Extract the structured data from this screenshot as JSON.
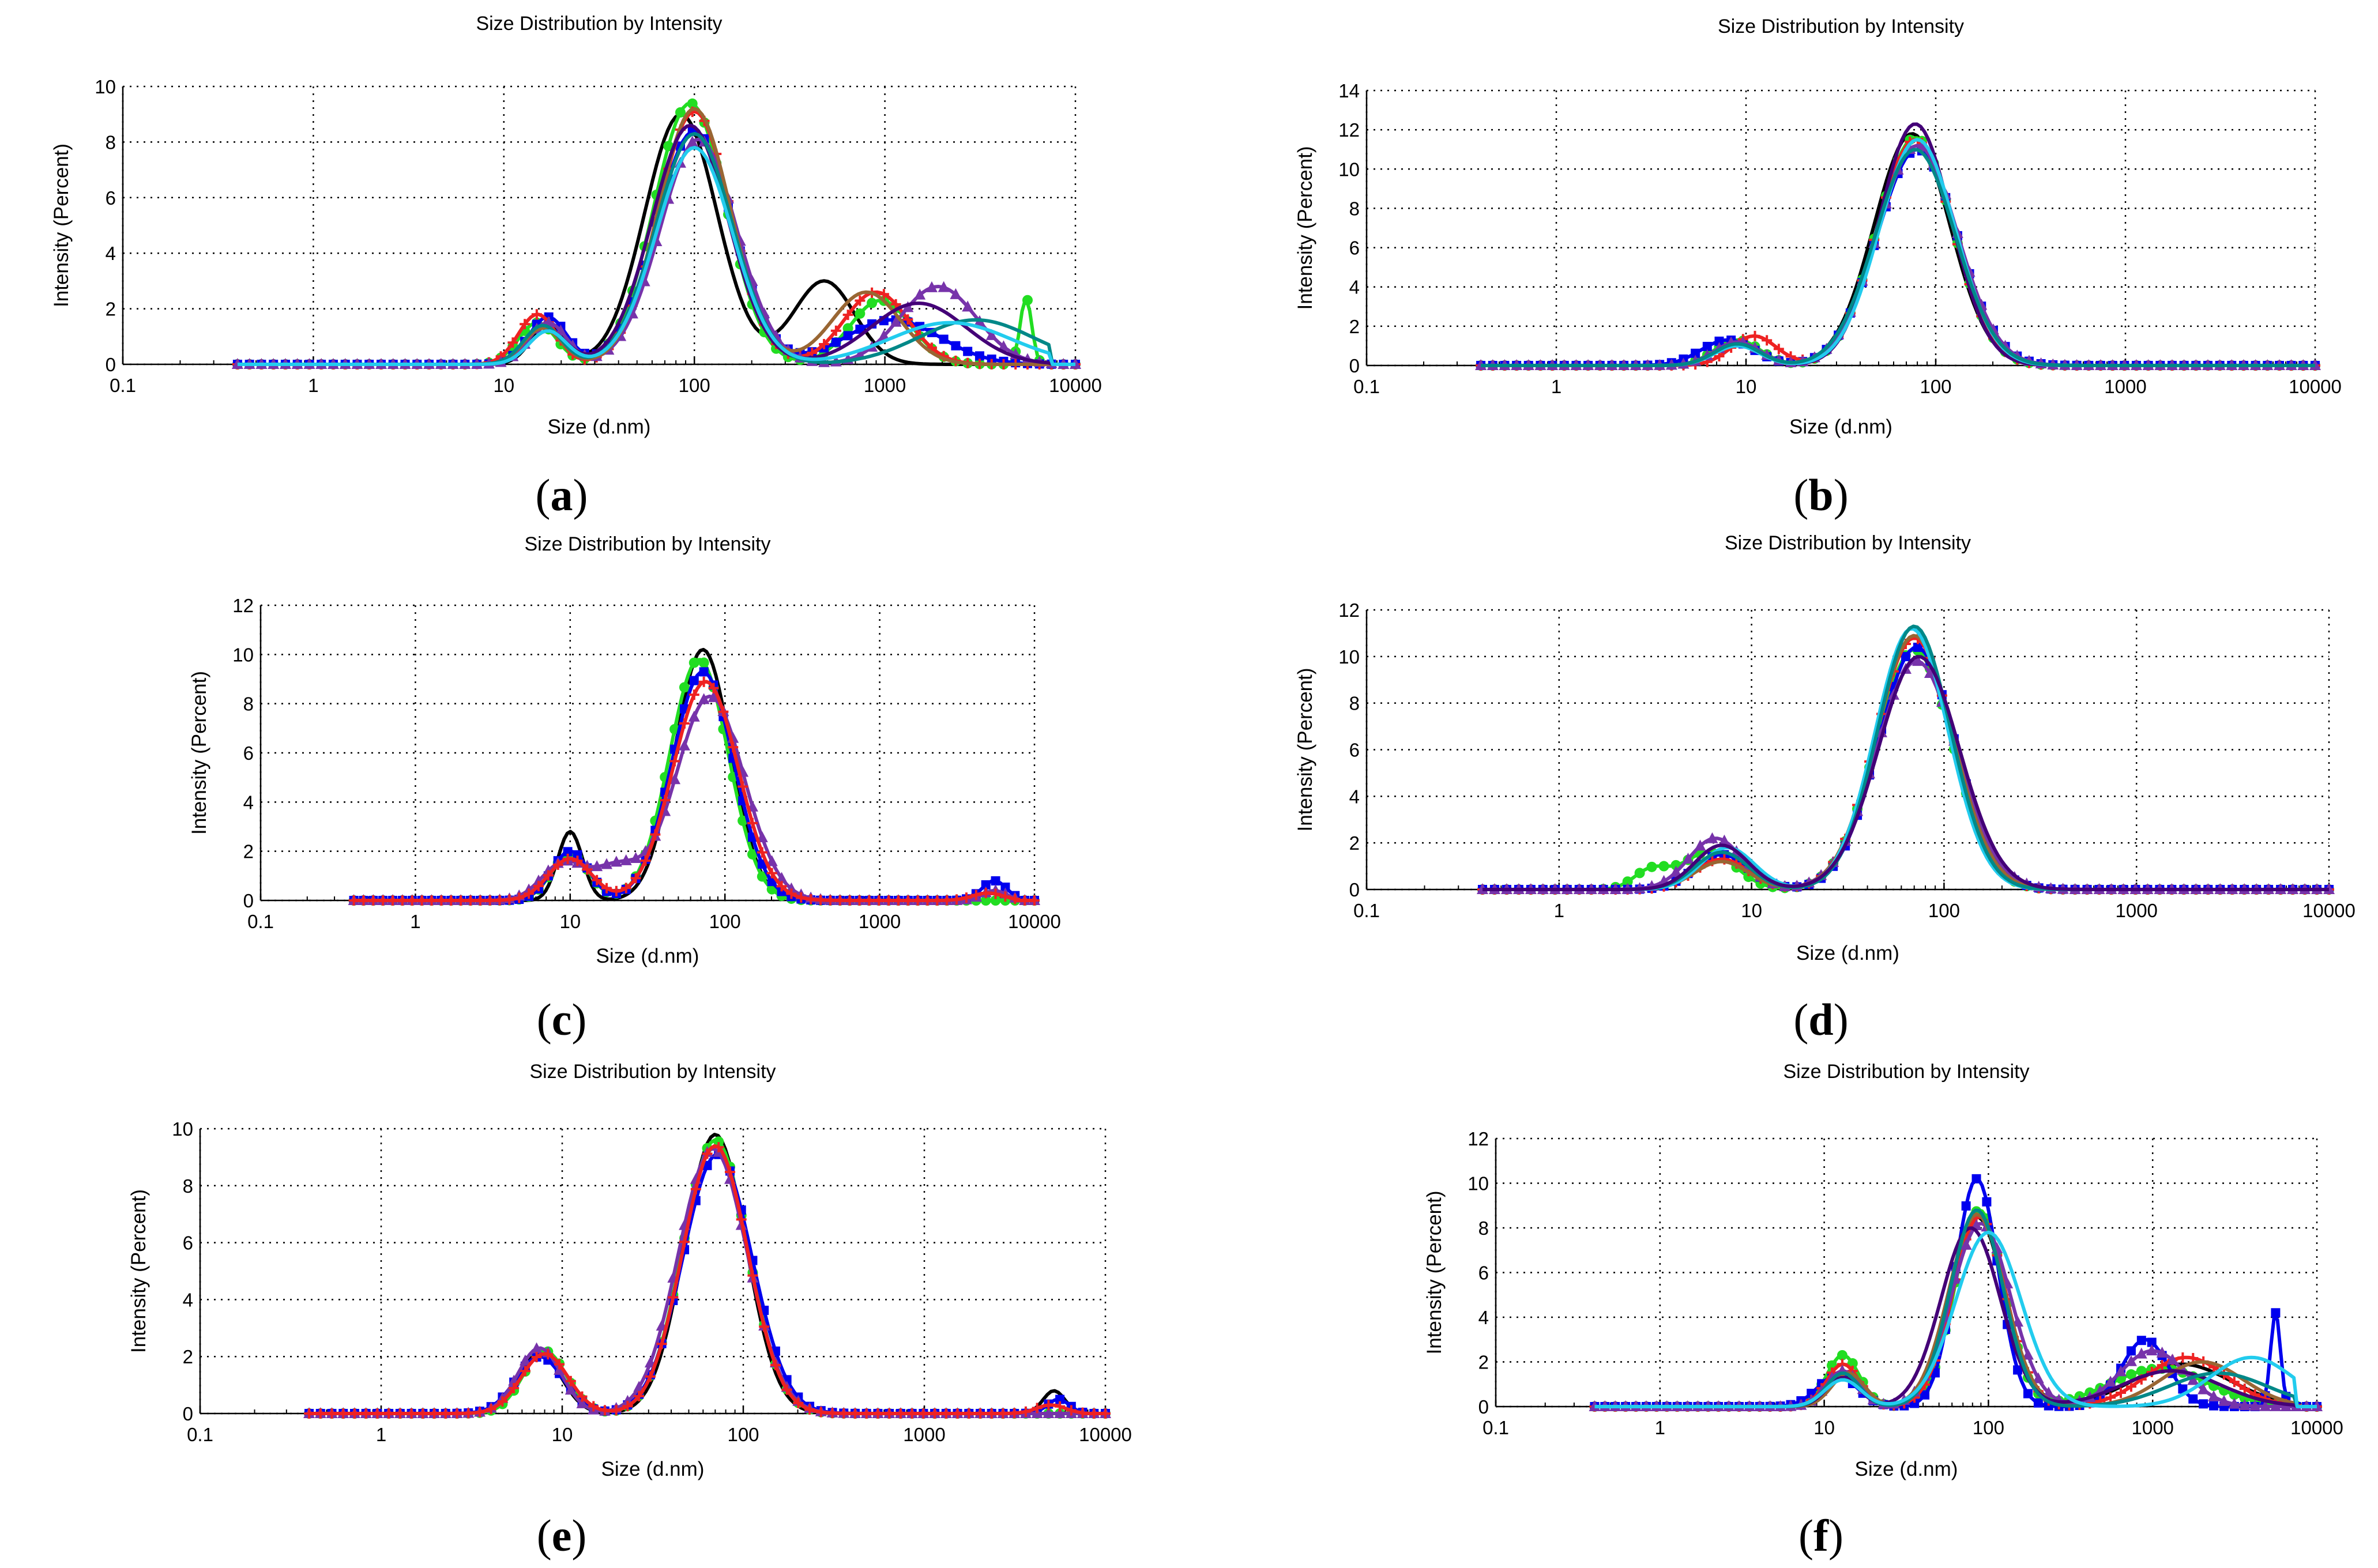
{
  "chart_data": [
    {
      "id": "a",
      "type": "line",
      "title": "Size Distribution by Intensity",
      "xlabel": "Size (d.nm)",
      "ylabel": "Intensity (Percent)",
      "xscale": "log",
      "xlim": [
        0.1,
        10000
      ],
      "ylim": [
        0,
        10
      ],
      "xticks": [
        "0.1",
        "1",
        "10",
        "100",
        "1000",
        "10000"
      ],
      "yticks": [
        "0",
        "2",
        "4",
        "6",
        "8",
        "10"
      ],
      "caption_letter": "a",
      "series": [
        {
          "name": "black",
          "color": "#000000",
          "marker": "none",
          "peaks": [
            [
              17,
              1.4,
              0.09
            ],
            [
              85,
              9.0,
              0.19
            ],
            [
              480,
              3.0,
              0.16
            ]
          ]
        },
        {
          "name": "green",
          "color": "#22dd22",
          "marker": "circle",
          "peaks": [
            [
              15,
              1.5,
              0.1
            ],
            [
              95,
              9.4,
              0.19
            ],
            [
              950,
              2.3,
              0.16
            ],
            [
              5500,
              2.4,
              0.03
            ]
          ]
        },
        {
          "name": "blue",
          "color": "#0000ee",
          "marker": "square",
          "peaks": [
            [
              17,
              1.7,
              0.1
            ],
            [
              100,
              8.4,
              0.2
            ],
            [
              1100,
              1.6,
              0.25
            ]
          ]
        },
        {
          "name": "red",
          "color": "#ee2222",
          "marker": "plus",
          "peaks": [
            [
              15,
              1.8,
              0.1
            ],
            [
              100,
              9.1,
              0.19
            ],
            [
              900,
              2.6,
              0.17
            ]
          ]
        },
        {
          "name": "purple",
          "color": "#7733aa",
          "marker": "triangle",
          "peaks": [
            [
              17,
              1.5,
              0.1
            ],
            [
              105,
              8.1,
              0.2
            ],
            [
              1900,
              2.8,
              0.2
            ]
          ]
        },
        {
          "name": "brown",
          "color": "#996633",
          "marker": "none",
          "peaks": [
            [
              16,
              1.3,
              0.1
            ],
            [
              100,
              9.2,
              0.19
            ],
            [
              800,
              2.6,
              0.18
            ]
          ]
        },
        {
          "name": "dark purple",
          "color": "#440077",
          "marker": "none",
          "peaks": [
            [
              17,
              1.2,
              0.1
            ],
            [
              95,
              8.6,
              0.2
            ],
            [
              1500,
              2.2,
              0.25
            ]
          ]
        },
        {
          "name": "dark cyan",
          "color": "#008888",
          "marker": "none",
          "peaks": [
            [
              16,
              1.4,
              0.1
            ],
            [
              100,
              8.3,
              0.2
            ],
            [
              3000,
              1.6,
              0.3
            ]
          ]
        },
        {
          "name": "cyan",
          "color": "#22ccee",
          "marker": "none",
          "peaks": [
            [
              17,
              1.2,
              0.1
            ],
            [
              100,
              7.8,
              0.2
            ],
            [
              2200,
              1.5,
              0.32
            ]
          ]
        }
      ]
    },
    {
      "id": "b",
      "type": "line",
      "title": "Size Distribution by Intensity",
      "xlabel": "Size (d.nm)",
      "ylabel": "Intensity (Percent)",
      "xscale": "log",
      "xlim": [
        0.1,
        10000
      ],
      "ylim": [
        0,
        14
      ],
      "xticks": [
        "0.1",
        "1",
        "10",
        "100",
        "1000",
        "10000"
      ],
      "yticks": [
        "0",
        "2",
        "4",
        "6",
        "8",
        "10",
        "12",
        "14"
      ],
      "caption_letter": "b",
      "series": [
        {
          "name": "black",
          "color": "#000000",
          "marker": "none",
          "peaks": [
            [
              9,
              1.2,
              0.12
            ],
            [
              75,
              11.8,
              0.2
            ]
          ]
        },
        {
          "name": "green",
          "color": "#22dd22",
          "marker": "circle",
          "peaks": [
            [
              9,
              1.3,
              0.12
            ],
            [
              78,
              11.6,
              0.2
            ]
          ]
        },
        {
          "name": "blue",
          "color": "#0000ee",
          "marker": "square",
          "peaks": [
            [
              8,
              1.3,
              0.14
            ],
            [
              80,
              11.0,
              0.21
            ]
          ]
        },
        {
          "name": "red",
          "color": "#ee2222",
          "marker": "plus",
          "peaks": [
            [
              11,
              1.5,
              0.12
            ],
            [
              78,
              11.5,
              0.2
            ]
          ]
        },
        {
          "name": "purple",
          "color": "#7733aa",
          "marker": "triangle",
          "peaks": [
            [
              9,
              1.2,
              0.12
            ],
            [
              80,
              11.2,
              0.21
            ]
          ]
        },
        {
          "name": "dark purple",
          "color": "#440077",
          "marker": "none",
          "peaks": [
            [
              9,
              1.1,
              0.12
            ],
            [
              78,
              12.3,
              0.19
            ]
          ]
        },
        {
          "name": "cyan",
          "color": "#22ccee",
          "marker": "none",
          "peaks": [
            [
              9,
              1.0,
              0.12
            ],
            [
              80,
              11.5,
              0.2
            ]
          ]
        },
        {
          "name": "dark cyan",
          "color": "#008888",
          "marker": "none",
          "peaks": [
            [
              9,
              1.1,
              0.12
            ],
            [
              78,
              11.0,
              0.21
            ]
          ]
        }
      ]
    },
    {
      "id": "c",
      "type": "line",
      "title": "Size Distribution by Intensity",
      "xlabel": "Size (d.nm)",
      "ylabel": "Intensity (Percent)",
      "xscale": "log",
      "xlim": [
        0.1,
        10000
      ],
      "ylim": [
        0,
        12
      ],
      "xticks": [
        "0.1",
        "1",
        "10",
        "100",
        "1000",
        "10000"
      ],
      "yticks": [
        "0",
        "2",
        "4",
        "6",
        "8",
        "10",
        "12"
      ],
      "caption_letter": "c",
      "series": [
        {
          "name": "black",
          "color": "#000000",
          "marker": "none",
          "peaks": [
            [
              10,
              2.8,
              0.08
            ],
            [
              72,
              10.2,
              0.18
            ]
          ]
        },
        {
          "name": "green",
          "color": "#22dd22",
          "marker": "circle",
          "peaks": [
            [
              10,
              1.9,
              0.12
            ],
            [
              68,
              9.8,
              0.19
            ]
          ]
        },
        {
          "name": "blue",
          "color": "#0000ee",
          "marker": "square",
          "peaks": [
            [
              10,
              2.0,
              0.12
            ],
            [
              72,
              9.3,
              0.2
            ],
            [
              5500,
              0.8,
              0.08
            ]
          ]
        },
        {
          "name": "purple",
          "color": "#7733aa",
          "marker": "triangle",
          "peaks": [
            [
              9,
              1.5,
              0.14
            ],
            [
              20,
              1.3,
              0.15
            ],
            [
              80,
              8.3,
              0.22
            ],
            [
              5500,
              0.4,
              0.08
            ]
          ]
        },
        {
          "name": "red",
          "color": "#ee2222",
          "marker": "plus",
          "peaks": [
            [
              10,
              1.7,
              0.14
            ],
            [
              75,
              8.9,
              0.21
            ],
            [
              5000,
              0.3,
              0.1
            ]
          ]
        }
      ]
    },
    {
      "id": "d",
      "type": "line",
      "title": "Size Distribution by Intensity",
      "xlabel": "Size (d.nm)",
      "ylabel": "Intensity (Percent)",
      "xscale": "log",
      "xlim": [
        0.1,
        10000
      ],
      "ylim": [
        0,
        12
      ],
      "xticks": [
        "0.1",
        "1",
        "10",
        "100",
        "1000",
        "10000"
      ],
      "yticks": [
        "0",
        "2",
        "4",
        "6",
        "8",
        "10",
        "12"
      ],
      "caption_letter": "d",
      "series": [
        {
          "name": "green",
          "color": "#22dd22",
          "marker": "circle",
          "peaks": [
            [
              3,
              0.8,
              0.09
            ],
            [
              6,
              1.6,
              0.14
            ],
            [
              70,
              10.3,
              0.2
            ]
          ]
        },
        {
          "name": "blue",
          "color": "#0000ee",
          "marker": "square",
          "peaks": [
            [
              7,
              1.5,
              0.14
            ],
            [
              72,
              10.4,
              0.2
            ]
          ]
        },
        {
          "name": "red",
          "color": "#ee2222",
          "marker": "plus",
          "peaks": [
            [
              7,
              1.3,
              0.14
            ],
            [
              70,
              10.8,
              0.2
            ]
          ]
        },
        {
          "name": "purple",
          "color": "#7733aa",
          "marker": "triangle",
          "peaks": [
            [
              6.5,
              2.2,
              0.14
            ],
            [
              72,
              9.8,
              0.21
            ]
          ]
        },
        {
          "name": "brown",
          "color": "#996633",
          "marker": "none",
          "peaks": [
            [
              7,
              1.2,
              0.14
            ],
            [
              70,
              10.9,
              0.2
            ]
          ]
        },
        {
          "name": "cyan",
          "color": "#22ccee",
          "marker": "none",
          "peaks": [
            [
              7.5,
              1.8,
              0.14
            ],
            [
              68,
              11.2,
              0.19
            ]
          ]
        },
        {
          "name": "dark cyan",
          "color": "#008888",
          "marker": "none",
          "peaks": [
            [
              7,
              1.6,
              0.14
            ],
            [
              70,
              11.3,
              0.19
            ]
          ]
        },
        {
          "name": "dark purple",
          "color": "#440077",
          "marker": "none",
          "peaks": [
            [
              7,
              1.9,
              0.14
            ],
            [
              74,
              10.0,
              0.21
            ]
          ]
        }
      ]
    },
    {
      "id": "e",
      "type": "line",
      "title": "Size Distribution by Intensity",
      "xlabel": "Size (d.nm)",
      "ylabel": "Intensity (Percent)",
      "xscale": "log",
      "xlim": [
        0.1,
        10000
      ],
      "ylim": [
        0,
        10
      ],
      "xticks": [
        "0.1",
        "1",
        "10",
        "100",
        "1000",
        "10000"
      ],
      "yticks": [
        "0",
        "2",
        "4",
        "6",
        "8",
        "10"
      ],
      "caption_letter": "e",
      "series": [
        {
          "name": "black",
          "color": "#000000",
          "marker": "none",
          "peaks": [
            [
              7.5,
              2.1,
              0.12
            ],
            [
              70,
              9.8,
              0.17
            ],
            [
              5200,
              0.8,
              0.06
            ]
          ]
        },
        {
          "name": "green",
          "color": "#22dd22",
          "marker": "circle",
          "peaks": [
            [
              8,
              2.2,
              0.12
            ],
            [
              70,
              9.6,
              0.18
            ]
          ]
        },
        {
          "name": "blue",
          "color": "#0000ee",
          "marker": "square",
          "peaks": [
            [
              7.5,
              2.0,
              0.13
            ],
            [
              72,
              9.1,
              0.19
            ],
            [
              5500,
              0.5,
              0.06
            ]
          ]
        },
        {
          "name": "purple",
          "color": "#7733aa",
          "marker": "triangle",
          "peaks": [
            [
              7.5,
              2.3,
              0.12
            ],
            [
              68,
              9.3,
              0.19
            ]
          ]
        },
        {
          "name": "red",
          "color": "#ee2222",
          "marker": "plus",
          "peaks": [
            [
              8,
              2.1,
              0.13
            ],
            [
              70,
              9.4,
              0.18
            ],
            [
              5000,
              0.3,
              0.08
            ]
          ]
        }
      ]
    },
    {
      "id": "f",
      "type": "line",
      "title": "Size Distribution by Intensity",
      "xlabel": "Size (d.nm)",
      "ylabel": "Intensity (Percent)",
      "xscale": "log",
      "xlim": [
        0.1,
        10000
      ],
      "ylim": [
        0,
        12
      ],
      "xticks": [
        "0.1",
        "1",
        "10",
        "100",
        "1000",
        "10000"
      ],
      "yticks": [
        "0",
        "2",
        "4",
        "6",
        "8",
        "10",
        "12"
      ],
      "caption_letter": "f",
      "series": [
        {
          "name": "black",
          "color": "#000000",
          "marker": "none",
          "peaks": [
            [
              13,
              1.4,
              0.1
            ],
            [
              85,
              8.5,
              0.17
            ],
            [
              1500,
              1.9,
              0.3
            ]
          ]
        },
        {
          "name": "green",
          "color": "#22dd22",
          "marker": "circle",
          "peaks": [
            [
              13,
              2.3,
              0.1
            ],
            [
              88,
              8.8,
              0.15
            ],
            [
              1100,
              1.7,
              0.3
            ]
          ]
        },
        {
          "name": "blue",
          "color": "#0000ee",
          "marker": "square",
          "peaks": [
            [
              12,
              1.4,
              0.12
            ],
            [
              85,
              10.2,
              0.13
            ],
            [
              900,
              3.0,
              0.14
            ],
            [
              5600,
              4.2,
              0.03
            ]
          ]
        },
        {
          "name": "red",
          "color": "#ee2222",
          "marker": "plus",
          "peaks": [
            [
              13,
              1.9,
              0.1
            ],
            [
              88,
              8.5,
              0.16
            ],
            [
              1600,
              2.2,
              0.25
            ]
          ]
        },
        {
          "name": "purple",
          "color": "#7733aa",
          "marker": "triangle",
          "peaks": [
            [
              13,
              1.6,
              0.1
            ],
            [
              90,
              8.2,
              0.18
            ],
            [
              1000,
              2.5,
              0.2
            ]
          ]
        },
        {
          "name": "brown",
          "color": "#996633",
          "marker": "none",
          "peaks": [
            [
              14,
              1.5,
              0.1
            ],
            [
              85,
              8.6,
              0.17
            ],
            [
              2000,
              2.0,
              0.25
            ]
          ]
        },
        {
          "name": "dark purple",
          "color": "#440077",
          "marker": "none",
          "peaks": [
            [
              13,
              1.3,
              0.1
            ],
            [
              78,
              8.0,
              0.18
            ],
            [
              1300,
              1.6,
              0.3
            ]
          ]
        },
        {
          "name": "dark cyan",
          "color": "#008888",
          "marker": "none",
          "peaks": [
            [
              13,
              1.5,
              0.1
            ],
            [
              85,
              8.8,
              0.16
            ],
            [
              2500,
              1.5,
              0.3
            ]
          ]
        },
        {
          "name": "cyan",
          "color": "#22ccee",
          "marker": "none",
          "peaks": [
            [
              13,
              1.2,
              0.11
            ],
            [
              100,
              7.8,
              0.2
            ],
            [
              4000,
              2.2,
              0.25
            ]
          ]
        }
      ]
    }
  ]
}
